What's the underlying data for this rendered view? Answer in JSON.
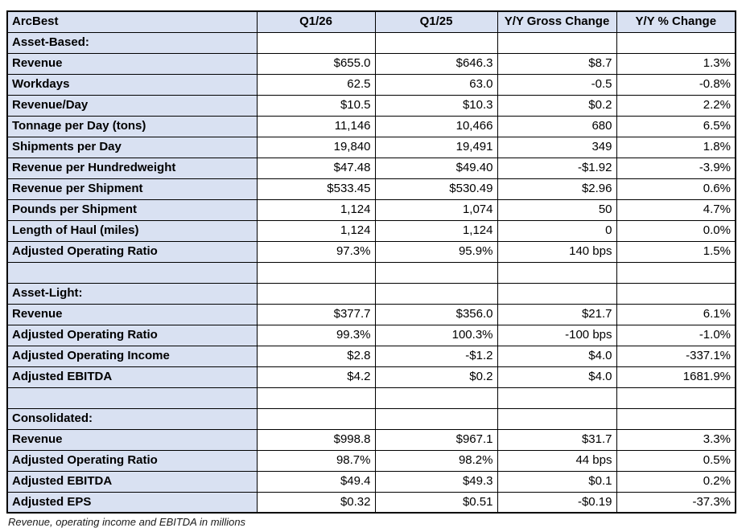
{
  "chart_data": {
    "type": "table",
    "title": "ArcBest",
    "columns": [
      "ArcBest",
      "Q1/26",
      "Q1/25",
      "Y/Y Gross Change",
      "Y/Y % Change"
    ],
    "rows": [
      {
        "type": "section",
        "label": "Asset-Based:",
        "values": [
          "",
          "",
          "",
          ""
        ]
      },
      {
        "type": "data",
        "label": "Revenue",
        "values": [
          "$655.0",
          "$646.3",
          "$8.7",
          "1.3%"
        ]
      },
      {
        "type": "data",
        "label": "Workdays",
        "values": [
          "62.5",
          "63.0",
          "-0.5",
          "-0.8%"
        ]
      },
      {
        "type": "data",
        "label": "Revenue/Day",
        "values": [
          "$10.5",
          "$10.3",
          "$0.2",
          "2.2%"
        ]
      },
      {
        "type": "data",
        "label": "Tonnage per Day (tons)",
        "values": [
          "11,146",
          "10,466",
          "680",
          "6.5%"
        ]
      },
      {
        "type": "data",
        "label": "Shipments per Day",
        "values": [
          "19,840",
          "19,491",
          "349",
          "1.8%"
        ]
      },
      {
        "type": "data",
        "label": "Revenue per Hundredweight",
        "values": [
          "$47.48",
          "$49.40",
          "-$1.92",
          "-3.9%"
        ]
      },
      {
        "type": "data",
        "label": "Revenue per Shipment",
        "values": [
          "$533.45",
          "$530.49",
          "$2.96",
          "0.6%"
        ]
      },
      {
        "type": "data",
        "label": "Pounds per Shipment",
        "values": [
          "1,124",
          "1,074",
          "50",
          "4.7%"
        ]
      },
      {
        "type": "data",
        "label": "Length of Haul (miles)",
        "values": [
          "1,124",
          "1,124",
          "0",
          "0.0%"
        ]
      },
      {
        "type": "data",
        "label": "Adjusted Operating Ratio",
        "values": [
          "97.3%",
          "95.9%",
          "140 bps",
          "1.5%"
        ]
      },
      {
        "type": "blank",
        "label": "",
        "values": [
          "",
          "",
          "",
          ""
        ]
      },
      {
        "type": "section",
        "label": "Asset-Light:",
        "values": [
          "",
          "",
          "",
          ""
        ]
      },
      {
        "type": "data",
        "label": "Revenue",
        "values": [
          "$377.7",
          "$356.0",
          "$21.7",
          "6.1%"
        ]
      },
      {
        "type": "data",
        "label": "Adjusted Operating Ratio",
        "values": [
          "99.3%",
          "100.3%",
          "-100 bps",
          "-1.0%"
        ]
      },
      {
        "type": "data",
        "label": "Adjusted Operating Income",
        "values": [
          "$2.8",
          "-$1.2",
          "$4.0",
          "-337.1%"
        ]
      },
      {
        "type": "data",
        "label": "Adjusted EBITDA",
        "values": [
          "$4.2",
          "$0.2",
          "$4.0",
          "1681.9%"
        ]
      },
      {
        "type": "blank",
        "label": "",
        "values": [
          "",
          "",
          "",
          ""
        ]
      },
      {
        "type": "section",
        "label": "Consolidated:",
        "values": [
          "",
          "",
          "",
          ""
        ]
      },
      {
        "type": "data",
        "label": "Revenue",
        "values": [
          "$998.8",
          "$967.1",
          "$31.7",
          "3.3%"
        ]
      },
      {
        "type": "data",
        "label": "Adjusted Operating Ratio",
        "values": [
          "98.7%",
          "98.2%",
          "44 bps",
          "0.5%"
        ]
      },
      {
        "type": "data",
        "label": "Adjusted EBITDA",
        "values": [
          "$49.4",
          "$49.3",
          "$0.1",
          "0.2%"
        ]
      },
      {
        "type": "data",
        "label": "Adjusted EPS",
        "values": [
          "$0.32",
          "$0.51",
          "-$0.19",
          "-37.3%"
        ]
      }
    ],
    "footnote": "Revenue, operating income and EBITDA in millions",
    "layout": {
      "legend": "none",
      "grid": "all-borders",
      "value_alignment": "right",
      "label_column_shaded": true
    },
    "colors": {
      "header_fill": "#D9E1F2",
      "label_fill": "#D9E1F2",
      "cell_fill": "#FFFFFF",
      "border": "#000000",
      "text": "#000000"
    }
  }
}
